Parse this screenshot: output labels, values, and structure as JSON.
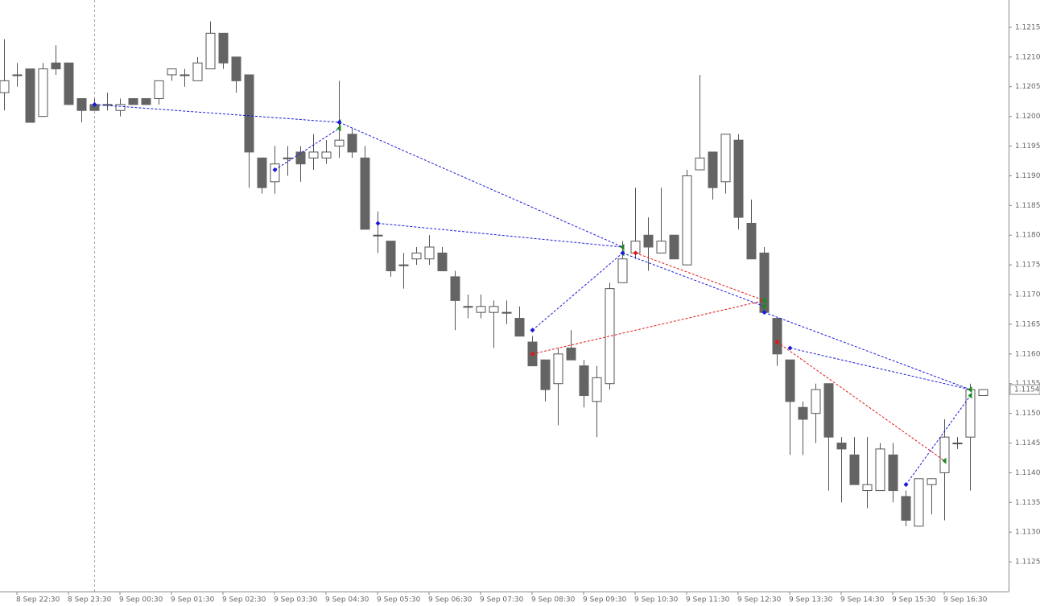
{
  "chart_data": {
    "type": "candlestick",
    "bull_color": "#ffffff",
    "bear_color": "#646464",
    "wick_color": "#555555",
    "open": [
      1.1204,
      1.1207,
      1.1208,
      1.12,
      1.1209,
      1.1209,
      1.1203,
      1.1202,
      1.1202,
      1.1201,
      1.1203,
      1.1203,
      1.1203,
      1.1207,
      1.1207,
      1.1206,
      1.1208,
      1.1214,
      1.121,
      1.1207,
      1.1193,
      1.1189,
      1.1193,
      1.1194,
      1.1193,
      1.1193,
      1.1195,
      1.1197,
      1.1193,
      1.118,
      1.1179,
      1.1175,
      1.1176,
      1.1176,
      1.1177,
      1.1173,
      1.1168,
      1.1167,
      1.1167,
      1.1167,
      1.1166,
      1.1162,
      1.1159,
      1.1155,
      1.1161,
      1.1158,
      1.1152,
      1.1155,
      1.1172,
      1.1177,
      1.118,
      1.1177,
      1.118,
      1.1175,
      1.1191,
      1.1194,
      1.1189,
      1.1196,
      1.1182,
      1.1177,
      1.1166,
      1.1159,
      1.1151,
      1.115,
      1.1155,
      1.1145,
      1.1143,
      1.1137,
      1.1137,
      1.1143,
      1.1136,
      1.1131,
      1.1138,
      1.114,
      1.1145,
      1.1146,
      1.1153
    ],
    "high": [
      1.1213,
      1.1209,
      1.1208,
      1.1209,
      1.1212,
      1.1209,
      1.1203,
      1.1203,
      1.1204,
      1.1203,
      1.1203,
      1.1203,
      1.1206,
      1.1208,
      1.1208,
      1.121,
      1.1216,
      1.1214,
      1.121,
      1.1207,
      1.1193,
      1.1195,
      1.1195,
      1.1195,
      1.1197,
      1.1196,
      1.1206,
      1.1198,
      1.1195,
      1.1184,
      1.1179,
      1.1177,
      1.1178,
      1.118,
      1.1178,
      1.1174,
      1.117,
      1.117,
      1.1169,
      1.1169,
      1.1168,
      1.1163,
      1.1159,
      1.1161,
      1.1164,
      1.1159,
      1.1158,
      1.1172,
      1.1179,
      1.1188,
      1.1183,
      1.1188,
      1.118,
      1.1191,
      1.1207,
      1.1194,
      1.1197,
      1.1197,
      1.1186,
      1.1178,
      1.1166,
      1.1159,
      1.1152,
      1.1155,
      1.1155,
      1.1146,
      1.1146,
      1.1146,
      1.1145,
      1.1145,
      1.1137,
      1.1139,
      1.1139,
      1.1149,
      1.1146,
      1.1155,
      1.1154
    ],
    "low": [
      1.1201,
      1.1205,
      1.1199,
      1.12,
      1.1207,
      1.1202,
      1.1199,
      1.1201,
      1.1201,
      1.12,
      1.1202,
      1.1202,
      1.1202,
      1.1206,
      1.1205,
      1.1206,
      1.1208,
      1.1208,
      1.1204,
      1.1188,
      1.1187,
      1.1187,
      1.119,
      1.1189,
      1.1191,
      1.1192,
      1.1193,
      1.1193,
      1.1181,
      1.1177,
      1.1173,
      1.1171,
      1.1175,
      1.1175,
      1.1174,
      1.1164,
      1.1166,
      1.1166,
      1.1161,
      1.1165,
      1.1163,
      1.1158,
      1.1152,
      1.1148,
      1.1159,
      1.1151,
      1.1146,
      1.1154,
      1.1172,
      1.1176,
      1.1174,
      1.1177,
      1.1176,
      1.1175,
      1.1191,
      1.1186,
      1.1187,
      1.1181,
      1.1176,
      1.1167,
      1.1158,
      1.1143,
      1.1143,
      1.1145,
      1.1137,
      1.1135,
      1.1138,
      1.1134,
      1.1137,
      1.1135,
      1.1131,
      1.1131,
      1.1133,
      1.1132,
      1.1144,
      1.1137,
      1.1153
    ],
    "close": [
      1.1206,
      1.1207,
      1.1199,
      1.1208,
      1.1208,
      1.1202,
      1.1201,
      1.1201,
      1.1202,
      1.1202,
      1.1202,
      1.1202,
      1.1206,
      1.1208,
      1.1207,
      1.1209,
      1.1214,
      1.1209,
      1.1206,
      1.1194,
      1.1188,
      1.1192,
      1.1193,
      1.1192,
      1.1194,
      1.1194,
      1.1196,
      1.1194,
      1.1181,
      1.118,
      1.1174,
      1.1175,
      1.1177,
      1.1178,
      1.1174,
      1.1169,
      1.1168,
      1.1168,
      1.1168,
      1.1167,
      1.1163,
      1.1158,
      1.1154,
      1.116,
      1.1159,
      1.1153,
      1.1156,
      1.1171,
      1.1176,
      1.1179,
      1.1178,
      1.1179,
      1.1176,
      1.119,
      1.1193,
      1.1188,
      1.1197,
      1.1183,
      1.1176,
      1.1167,
      1.116,
      1.1152,
      1.1149,
      1.1154,
      1.1146,
      1.1144,
      1.1138,
      1.1138,
      1.1144,
      1.1137,
      1.1132,
      1.1139,
      1.1139,
      1.1146,
      1.1145,
      1.1154,
      1.1154
    ],
    "trades": [
      {
        "color": "#1a1ad8",
        "from_index": 7,
        "from_price": 1.1202,
        "to_index": 26,
        "to_price": 1.1199
      },
      {
        "color": "#1a1ad8",
        "from_index": 21,
        "from_price": 1.1191,
        "to_index": 26,
        "to_price": 1.1198
      },
      {
        "color": "#1a1ad8",
        "from_index": 26,
        "from_price": 1.1199,
        "to_index": 48,
        "to_price": 1.1178
      },
      {
        "color": "#1a1ad8",
        "from_index": 29,
        "from_price": 1.1182,
        "to_index": 48,
        "to_price": 1.1178
      },
      {
        "color": "#1a1ad8",
        "from_index": 41,
        "from_price": 1.1164,
        "to_index": 48,
        "to_price": 1.1177
      },
      {
        "color": "#1a1ad8",
        "from_index": 48,
        "from_price": 1.1177,
        "to_index": 59,
        "to_price": 1.1168
      },
      {
        "color": "#e01818",
        "from_index": 41,
        "from_price": 1.116,
        "to_index": 59,
        "to_price": 1.1169
      },
      {
        "color": "#e01818",
        "from_index": 49,
        "from_price": 1.1177,
        "to_index": 59,
        "to_price": 1.1169
      },
      {
        "color": "#1a1ad8",
        "from_index": 59,
        "from_price": 1.1167,
        "to_index": 75,
        "to_price": 1.1154
      },
      {
        "color": "#1a1ad8",
        "from_index": 61,
        "from_price": 1.1161,
        "to_index": 75,
        "to_price": 1.1154
      },
      {
        "color": "#e01818",
        "from_index": 60,
        "from_price": 1.1162,
        "to_index": 73,
        "to_price": 1.1142
      },
      {
        "color": "#1a1ad8",
        "from_index": 70,
        "from_price": 1.1138,
        "to_index": 75,
        "to_price": 1.1153
      }
    ],
    "ylim": [
      1.112,
      1.12196
    ],
    "yticks": [
      {
        "value": 1.1125,
        "label": "1.1125"
      },
      {
        "value": 1.113,
        "label": "1.1130"
      },
      {
        "value": 1.1135,
        "label": "1.1135"
      },
      {
        "value": 1.114,
        "label": "1.1140"
      },
      {
        "value": 1.1145,
        "label": "1.1145"
      },
      {
        "value": 1.115,
        "label": "1.1150"
      },
      {
        "value": 1.1155,
        "label": "1.1155"
      },
      {
        "value": 1.116,
        "label": "1.1160"
      },
      {
        "value": 1.1165,
        "label": "1.1165"
      },
      {
        "value": 1.117,
        "label": "1.1170"
      },
      {
        "value": 1.1175,
        "label": "1.1175"
      },
      {
        "value": 1.118,
        "label": "1.1180"
      },
      {
        "value": 1.1185,
        "label": "1.1185"
      },
      {
        "value": 1.119,
        "label": "1.1190"
      },
      {
        "value": 1.1195,
        "label": "1.1195"
      },
      {
        "value": 1.12,
        "label": "1.1200"
      },
      {
        "value": 1.1205,
        "label": "1.1205"
      },
      {
        "value": 1.121,
        "label": "1.1210"
      },
      {
        "value": 1.1215,
        "label": "1.1215"
      }
    ],
    "xticks": [
      {
        "value": 1,
        "label": "8 Sep 22:30"
      },
      {
        "value": 5,
        "label": "8 Sep 23:30"
      },
      {
        "value": 9,
        "label": "9 Sep 00:30"
      },
      {
        "value": 13,
        "label": "9 Sep 01:30"
      },
      {
        "value": 17,
        "label": "9 Sep 02:30"
      },
      {
        "value": 21,
        "label": "9 Sep 03:30"
      },
      {
        "value": 25,
        "label": "9 Sep 04:30"
      },
      {
        "value": 29,
        "label": "9 Sep 05:30"
      },
      {
        "value": 33,
        "label": "9 Sep 06:30"
      },
      {
        "value": 37,
        "label": "9 Sep 07:30"
      },
      {
        "value": 41,
        "label": "9 Sep 08:30"
      },
      {
        "value": 45,
        "label": "9 Sep 09:30"
      },
      {
        "value": 49,
        "label": "9 Sep 10:30"
      },
      {
        "value": 53,
        "label": "9 Sep 11:30"
      },
      {
        "value": 57,
        "label": "9 Sep 12:30"
      },
      {
        "value": 61,
        "label": "9 Sep 13:30"
      },
      {
        "value": 65,
        "label": "9 Sep 14:30"
      },
      {
        "value": 69,
        "label": "9 Sep 15:30"
      },
      {
        "value": 73,
        "label": "9 Sep 16:30"
      }
    ],
    "last_price": {
      "value": 1.1154,
      "label": "1.1154"
    }
  }
}
